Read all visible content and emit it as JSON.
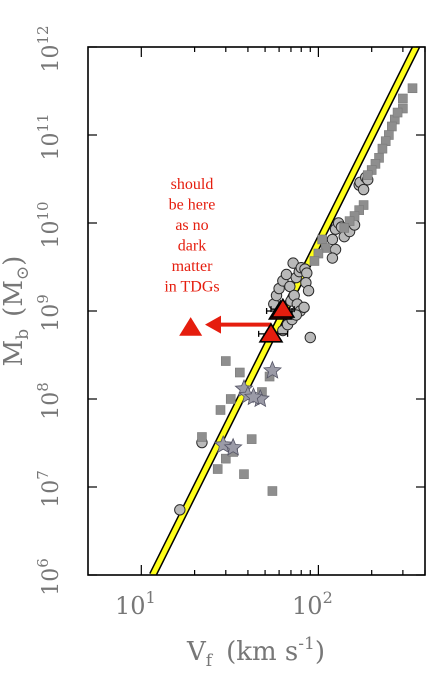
{
  "chart_data": {
    "type": "scatter",
    "xscale": "log",
    "yscale": "log",
    "xlim": [
      5,
      400
    ],
    "ylim": [
      1000000,
      1000000000000
    ],
    "grid": false,
    "x_ticks": [
      {
        "value": 10,
        "base": "10",
        "exp": "1"
      },
      {
        "value": 100,
        "base": "10",
        "exp": "2"
      }
    ],
    "y_ticks": [
      {
        "value": 1000000,
        "base": "10",
        "exp": "6"
      },
      {
        "value": 10000000,
        "base": "10",
        "exp": "7"
      },
      {
        "value": 100000000,
        "base": "10",
        "exp": "8"
      },
      {
        "value": 1000000000,
        "base": "10",
        "exp": "9"
      },
      {
        "value": 10000000000,
        "base": "10",
        "exp": "10"
      },
      {
        "value": 100000000000,
        "base": "10",
        "exp": "11"
      },
      {
        "value": 1000000000000,
        "base": "10",
        "exp": "12"
      }
    ],
    "xlabel": {
      "main": "V",
      "sub": "f",
      "units": "(km s",
      "sup": "-1",
      "close": ")"
    },
    "ylabel": {
      "main": "M",
      "sub": "b",
      "units": "(M",
      "symbol": "⊙",
      "close": ")"
    },
    "fit_line": {
      "points": [
        [
          11.6,
          1000000
        ],
        [
          400,
          1600000000000
        ]
      ],
      "color": "#ffff1a"
    },
    "series": [
      {
        "marker": "circle",
        "color": "#b9b9b9",
        "points": [
          [
            16.5,
            5500000
          ],
          [
            22,
            32000000
          ],
          [
            56,
            1200000000
          ],
          [
            58,
            1500000000
          ],
          [
            60,
            1800000000
          ],
          [
            63,
            2200000000
          ],
          [
            66,
            2600000000
          ],
          [
            69,
            1900000000
          ],
          [
            72,
            3500000000
          ],
          [
            75,
            2400000000
          ],
          [
            78,
            2800000000
          ],
          [
            80,
            3100000000
          ],
          [
            84,
            3000000000
          ],
          [
            86,
            2700000000
          ],
          [
            70,
            1300000000
          ],
          [
            73,
            1500000000
          ],
          [
            76,
            1200000000
          ],
          [
            79,
            1000000000
          ],
          [
            63,
            600000000
          ],
          [
            67,
            700000000
          ],
          [
            71,
            800000000
          ],
          [
            75,
            900000000
          ],
          [
            83,
            1100000000
          ],
          [
            90,
            500000000
          ],
          [
            85,
            2100000000
          ],
          [
            88,
            1700000000
          ],
          [
            120,
            6500000000
          ],
          [
            125,
            8500000000
          ],
          [
            130,
            10000000000
          ],
          [
            135,
            9000000000
          ],
          [
            140,
            7000000000
          ],
          [
            150,
            8000000000
          ],
          [
            125,
            5000000000
          ],
          [
            120,
            4000000000
          ],
          [
            160,
            9500000000
          ],
          [
            170,
            27000000000
          ],
          [
            172,
            29000000000
          ],
          [
            180,
            24000000000
          ],
          [
            185,
            33000000000
          ],
          [
            190,
            31000000000
          ]
        ]
      },
      {
        "marker": "square",
        "color": "#8e8e8e",
        "points": [
          [
            27,
            16000000
          ],
          [
            30,
            21000000
          ],
          [
            33,
            25000000
          ],
          [
            38,
            14000000
          ],
          [
            42,
            35000000
          ],
          [
            48,
            120000000
          ],
          [
            53,
            180000000
          ],
          [
            36,
            200000000
          ],
          [
            28,
            75000000
          ],
          [
            32,
            100000000
          ],
          [
            22,
            37000000
          ],
          [
            30,
            270000000
          ],
          [
            55,
            9000000
          ],
          [
            340,
            340000000000
          ],
          [
            300,
            200000000000
          ],
          [
            270,
            150000000000
          ],
          [
            260,
            125000000000
          ],
          [
            250,
            100000000000
          ],
          [
            240,
            85000000000
          ],
          [
            230,
            70000000000
          ],
          [
            220,
            55000000000
          ],
          [
            210,
            47000000000
          ],
          [
            200,
            40000000000
          ],
          [
            190,
            35000000000
          ],
          [
            180,
            16000000000
          ],
          [
            170,
            14000000000
          ],
          [
            160,
            12000000000
          ],
          [
            150,
            10500000000
          ],
          [
            140,
            8800000000
          ],
          [
            105,
            6500000000
          ],
          [
            110,
            5200000000
          ],
          [
            100,
            4500000000
          ],
          [
            95,
            3700000000
          ],
          [
            300,
            260000000000
          ],
          [
            280,
            180000000000
          ]
        ]
      },
      {
        "marker": "star",
        "color": "#9b9ba7",
        "points": [
          [
            38,
            130000000
          ],
          [
            40,
            110000000
          ],
          [
            47,
            100000000
          ],
          [
            43,
            105000000
          ],
          [
            55,
            210000000
          ],
          [
            29,
            30000000
          ],
          [
            33,
            28000000
          ]
        ]
      },
      {
        "marker": "triangle",
        "color": "#e51d0e",
        "points": [
          [
            54,
            550000000
          ],
          [
            61,
            1000000000
          ],
          [
            63,
            1050000000
          ]
        ],
        "xerr": [
          [
            46,
            67
          ],
          [
            51,
            71
          ],
          [
            54,
            73
          ]
        ]
      }
    ],
    "arrow": {
      "from": [
        54,
        700000000
      ],
      "to": [
        23.5,
        700000000
      ],
      "color": "#e51d0e"
    },
    "target_marker": {
      "x": 19,
      "y": 650000000,
      "marker": "triangle",
      "color": "#e51d0e"
    },
    "annotation": {
      "lines": [
        "should",
        "be  here",
        "as  no",
        "dark",
        "matter",
        "in TDGs"
      ],
      "color": "#e51d0e"
    }
  }
}
